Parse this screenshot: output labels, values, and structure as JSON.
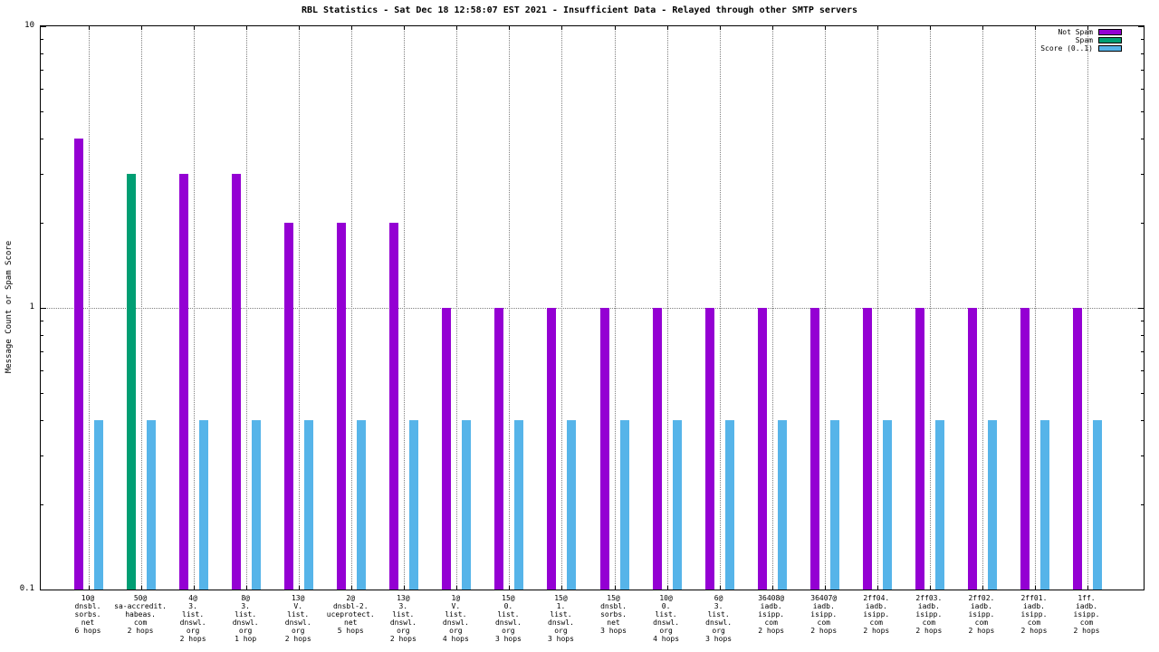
{
  "chart_data": {
    "type": "bar",
    "title": "RBL Statistics - Sat Dec 18 12:58:07 EST 2021 - Insufficient Data - Relayed through other SMTP servers",
    "ylabel": "Message Count or Spam Score",
    "yscale": "log",
    "ylim": [
      0.1,
      10
    ],
    "yticks": [
      {
        "value": 10,
        "label": "10"
      },
      {
        "value": 1,
        "label": "1"
      },
      {
        "value": 0.1,
        "label": "0.1"
      }
    ],
    "grid": {
      "vertical_dotted_per_category": true,
      "horizontal_dotted_at": 1
    },
    "legend_position": "top-right",
    "categories": [
      [
        "10@",
        "dnsbl.",
        "sorbs.",
        "net",
        "6 hops"
      ],
      [
        "50@",
        "sa-accredit.",
        "habeas.",
        "com",
        "2 hops"
      ],
      [
        "4@",
        "3.",
        "list.",
        "dnswl.",
        "org",
        "2 hops"
      ],
      [
        "8@",
        "3.",
        "list.",
        "dnswl.",
        "org",
        "1 hop"
      ],
      [
        "13@",
        "V.",
        "list.",
        "dnswl.",
        "org",
        "2 hops"
      ],
      [
        "2@",
        "dnsbl-2.",
        "uceprotect.",
        "net",
        "5 hops"
      ],
      [
        "13@",
        "3.",
        "list.",
        "dnswl.",
        "org",
        "2 hops"
      ],
      [
        "1@",
        "V.",
        "list.",
        "dnswl.",
        "org",
        "4 hops"
      ],
      [
        "15@",
        "0.",
        "list.",
        "dnswl.",
        "org",
        "3 hops"
      ],
      [
        "15@",
        "1.",
        "list.",
        "dnswl.",
        "org",
        "3 hops"
      ],
      [
        "15@",
        "dnsbl.",
        "sorbs.",
        "net",
        "3 hops"
      ],
      [
        "10@",
        "0.",
        "list.",
        "dnswl.",
        "org",
        "4 hops"
      ],
      [
        "6@",
        "3.",
        "list.",
        "dnswl.",
        "org",
        "3 hops"
      ],
      [
        "36408@",
        "iadb.",
        "isipp.",
        "com",
        "2 hops"
      ],
      [
        "36407@",
        "iadb.",
        "isipp.",
        "com",
        "2 hops"
      ],
      [
        "2ff04.",
        "iadb.",
        "isipp.",
        "com",
        "2 hops"
      ],
      [
        "2ff03.",
        "iadb.",
        "isipp.",
        "com",
        "2 hops"
      ],
      [
        "2ff02.",
        "iadb.",
        "isipp.",
        "com",
        "2 hops"
      ],
      [
        "2ff01.",
        "iadb.",
        "isipp.",
        "com",
        "2 hops"
      ],
      [
        "1ff.",
        "iadb.",
        "isipp.",
        "com",
        "2 hops"
      ]
    ],
    "series": [
      {
        "name": "Not Spam",
        "color": "#9400d3",
        "slot": "count",
        "values": [
          4,
          null,
          3,
          3,
          2,
          2,
          2,
          1,
          1,
          1,
          1,
          1,
          1,
          1,
          1,
          1,
          1,
          1,
          1,
          1
        ]
      },
      {
        "name": "Spam",
        "color": "#009e73",
        "slot": "count",
        "values": [
          null,
          3,
          null,
          null,
          null,
          null,
          null,
          null,
          null,
          null,
          null,
          null,
          null,
          null,
          null,
          null,
          null,
          null,
          null,
          null
        ]
      },
      {
        "name": "Score (0..1)",
        "color": "#56b4e9",
        "slot": "score",
        "values": [
          0.4,
          0.4,
          0.4,
          0.4,
          0.4,
          0.4,
          0.4,
          0.4,
          0.4,
          0.4,
          0.4,
          0.4,
          0.4,
          0.4,
          0.4,
          0.4,
          0.4,
          0.4,
          0.4,
          0.4
        ]
      }
    ]
  }
}
